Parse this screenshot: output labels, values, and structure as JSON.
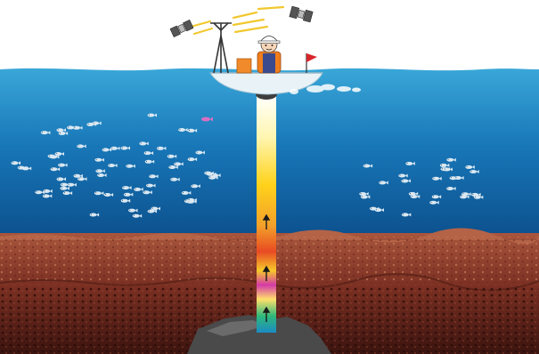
{
  "scene": {
    "colors": {
      "sky": "#ffffff",
      "water_top": "#2a97cf",
      "water_bottom": "#0c4f8c",
      "seabed_top": "#9a4a36",
      "seabed_mid": "#6e2a1e",
      "seabed_deep": "#3b140f",
      "rock": "#4a4a4a",
      "boat_hull": "#e9f3f7",
      "worker_vest": "#f07d1c",
      "crate": "#f08a2a",
      "flag": "#d7262b",
      "fish": "#d9e8f2"
    },
    "icons": {
      "left_satellite": "satellite-icon",
      "right_satellite": "satellite-icon",
      "antenna": "antenna-mast-icon",
      "worker": "engineer-with-hardhat-icon",
      "flag": "flag-icon",
      "fish": "fish-icon",
      "pink_fish": "fish-icon",
      "arrows": "arrow-up-icon"
    }
  }
}
